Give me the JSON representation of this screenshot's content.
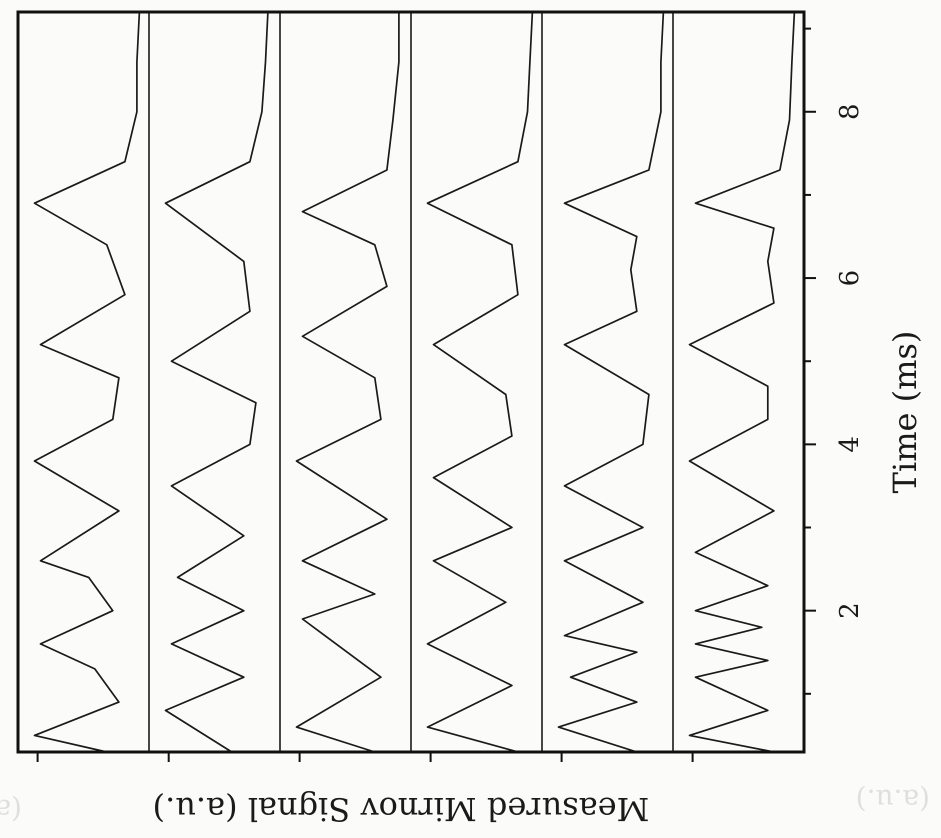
{
  "chart_data": {
    "type": "line",
    "orientation": "rotated-90-clockwise",
    "xlabel": "Time (ms)",
    "ylabel": "Measured Mirnov Signal (a.u.)",
    "xlim": [
      0.3,
      9.2
    ],
    "xticks": [
      2,
      4,
      6,
      8
    ],
    "x_minor_ticks": [
      1,
      3,
      5,
      7,
      9
    ],
    "y_unit": "a.u.",
    "grid": false,
    "legend": "none",
    "series_layout": "six vertically offset traces (stacked panels)",
    "series": [
      {
        "index": 1,
        "peak_times": [
          0.5,
          1.6,
          2.6,
          3.8,
          5.2,
          6.9
        ],
        "baseline": 0.05,
        "x": [
          0.3,
          0.5,
          0.9,
          1.3,
          1.6,
          2.0,
          2.4,
          2.6,
          3.2,
          3.8,
          4.3,
          4.8,
          5.2,
          5.8,
          6.4,
          6.9,
          7.4,
          8.0,
          8.6,
          9.2
        ],
        "y": [
          0.35,
          0.95,
          0.25,
          0.45,
          0.9,
          0.3,
          0.5,
          0.9,
          0.25,
          0.95,
          0.3,
          0.25,
          0.9,
          0.2,
          0.35,
          0.95,
          0.2,
          0.1,
          0.1,
          0.08
        ]
      },
      {
        "index": 2,
        "peak_times": [
          0.8,
          1.6,
          2.4,
          3.5,
          5.0,
          6.9
        ],
        "baseline": 0.05,
        "x": [
          0.3,
          0.8,
          1.2,
          1.6,
          2.0,
          2.4,
          2.9,
          3.5,
          4.0,
          4.5,
          5.0,
          5.6,
          6.2,
          6.9,
          7.4,
          8.0,
          8.6,
          9.2
        ],
        "y": [
          0.4,
          0.95,
          0.3,
          0.9,
          0.3,
          0.85,
          0.3,
          0.9,
          0.25,
          0.2,
          0.9,
          0.25,
          0.3,
          0.95,
          0.25,
          0.15,
          0.12,
          0.1
        ]
      },
      {
        "index": 3,
        "peak_times": [
          0.6,
          1.9,
          2.6,
          3.8,
          5.3,
          6.8
        ],
        "baseline": 0.05,
        "x": [
          0.3,
          0.6,
          1.2,
          1.9,
          2.2,
          2.6,
          3.1,
          3.8,
          4.3,
          4.8,
          5.3,
          5.9,
          6.4,
          6.8,
          7.3,
          7.9,
          8.6,
          9.2
        ],
        "y": [
          0.3,
          0.95,
          0.25,
          0.9,
          0.3,
          0.9,
          0.2,
          0.95,
          0.25,
          0.3,
          0.9,
          0.2,
          0.3,
          0.9,
          0.2,
          0.15,
          0.1,
          0.1
        ]
      },
      {
        "index": 4,
        "peak_times": [
          0.6,
          1.6,
          2.6,
          3.6,
          5.2,
          6.9
        ],
        "baseline": 0.05,
        "x": [
          0.3,
          0.6,
          1.1,
          1.6,
          2.1,
          2.6,
          3.0,
          3.6,
          4.1,
          4.6,
          5.2,
          5.8,
          6.4,
          6.9,
          7.4,
          8.0,
          8.6,
          9.2
        ],
        "y": [
          0.2,
          0.95,
          0.25,
          0.95,
          0.3,
          0.9,
          0.25,
          0.9,
          0.25,
          0.3,
          0.9,
          0.2,
          0.25,
          0.95,
          0.2,
          0.12,
          0.1,
          0.08
        ]
      },
      {
        "index": 5,
        "peak_times": [
          0.6,
          1.2,
          1.7,
          2.6,
          3.5,
          5.2,
          6.9
        ],
        "baseline": 0.05,
        "x": [
          0.3,
          0.6,
          0.9,
          1.2,
          1.5,
          1.7,
          2.1,
          2.6,
          3.0,
          3.5,
          4.0,
          4.6,
          5.2,
          5.6,
          6.1,
          6.5,
          6.9,
          7.3,
          8.0,
          8.6,
          9.2
        ],
        "y": [
          0.3,
          0.95,
          0.3,
          0.85,
          0.3,
          0.9,
          0.25,
          0.9,
          0.25,
          0.9,
          0.25,
          0.2,
          0.9,
          0.3,
          0.35,
          0.3,
          0.9,
          0.2,
          0.1,
          0.1,
          0.08
        ]
      },
      {
        "index": 6,
        "peak_times": [
          0.5,
          1.2,
          1.6,
          2.0,
          2.7,
          3.8,
          5.2,
          6.9
        ],
        "baseline": 0.05,
        "x": [
          0.3,
          0.5,
          0.8,
          1.2,
          1.4,
          1.6,
          1.8,
          2.0,
          2.3,
          2.7,
          3.2,
          3.8,
          4.3,
          4.7,
          5.2,
          5.7,
          6.2,
          6.6,
          6.9,
          7.3,
          7.9,
          8.6,
          9.2
        ],
        "y": [
          0.25,
          0.95,
          0.3,
          0.9,
          0.3,
          0.9,
          0.35,
          0.9,
          0.3,
          0.9,
          0.25,
          0.95,
          0.3,
          0.3,
          0.95,
          0.25,
          0.3,
          0.25,
          0.9,
          0.2,
          0.12,
          0.1,
          0.08
        ]
      }
    ]
  },
  "ghost_text": [
    "(a.u.)",
    "(a.u.)"
  ]
}
